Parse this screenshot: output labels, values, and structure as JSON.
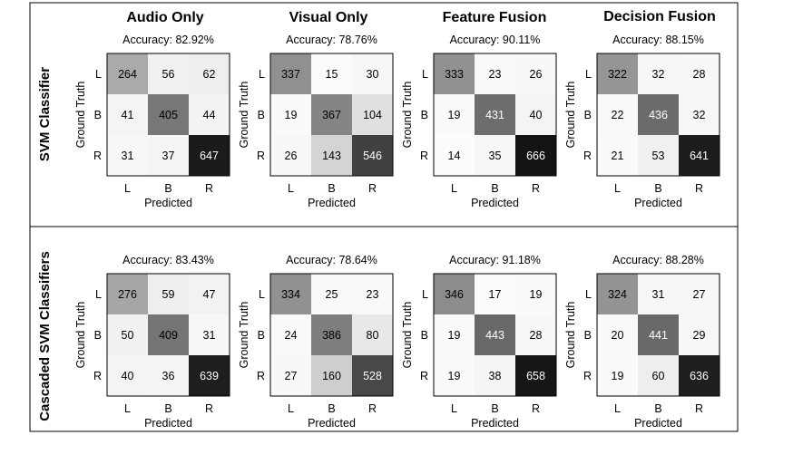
{
  "chart_data": {
    "type": "heatmap",
    "columns": [
      "Audio Only",
      "Visual Only",
      "Feature Fusion",
      "Decision Fusion"
    ],
    "rows": [
      "SVM Classifier",
      "Cascaded SVM Classifiers"
    ],
    "classes": [
      "L",
      "B",
      "R"
    ],
    "xlabel": "Predicted",
    "ylabel": "Ground Truth",
    "matrices": [
      {
        "row": "SVM Classifier",
        "column": "Audio Only",
        "accuracy": "Accuracy: 82.92%",
        "values": [
          [
            264,
            56,
            62
          ],
          [
            41,
            405,
            44
          ],
          [
            31,
            37,
            647
          ]
        ]
      },
      {
        "row": "SVM Classifier",
        "column": "Visual Only",
        "accuracy": "Accuracy: 78.76%",
        "values": [
          [
            337,
            15,
            30
          ],
          [
            19,
            367,
            104
          ],
          [
            26,
            143,
            546
          ]
        ]
      },
      {
        "row": "SVM Classifier",
        "column": "Feature Fusion",
        "accuracy": "Accuracy: 90.11%",
        "values": [
          [
            333,
            23,
            26
          ],
          [
            19,
            431,
            40
          ],
          [
            14,
            35,
            666
          ]
        ]
      },
      {
        "row": "SVM Classifier",
        "column": "Decision Fusion",
        "accuracy": "Accuracy: 88.15%",
        "values": [
          [
            322,
            32,
            28
          ],
          [
            22,
            436,
            32
          ],
          [
            21,
            53,
            641
          ]
        ]
      },
      {
        "row": "Cascaded SVM Classifiers",
        "column": "Audio Only",
        "accuracy": "Accuracy: 83.43%",
        "values": [
          [
            276,
            59,
            47
          ],
          [
            50,
            409,
            31
          ],
          [
            40,
            36,
            639
          ]
        ]
      },
      {
        "row": "Cascaded SVM Classifiers",
        "column": "Visual Only",
        "accuracy": "Accuracy: 78.64%",
        "values": [
          [
            334,
            25,
            23
          ],
          [
            24,
            386,
            80
          ],
          [
            27,
            160,
            528
          ]
        ]
      },
      {
        "row": "Cascaded SVM Classifiers",
        "column": "Feature Fusion",
        "accuracy": "Accuracy: 91.18%",
        "values": [
          [
            346,
            17,
            19
          ],
          [
            19,
            443,
            28
          ],
          [
            19,
            38,
            658
          ]
        ]
      },
      {
        "row": "Cascaded SVM Classifiers",
        "column": "Decision Fusion",
        "accuracy": "Accuracy: 88.28%",
        "values": [
          [
            324,
            31,
            27
          ],
          [
            20,
            441,
            29
          ],
          [
            19,
            60,
            636
          ]
        ]
      }
    ]
  }
}
